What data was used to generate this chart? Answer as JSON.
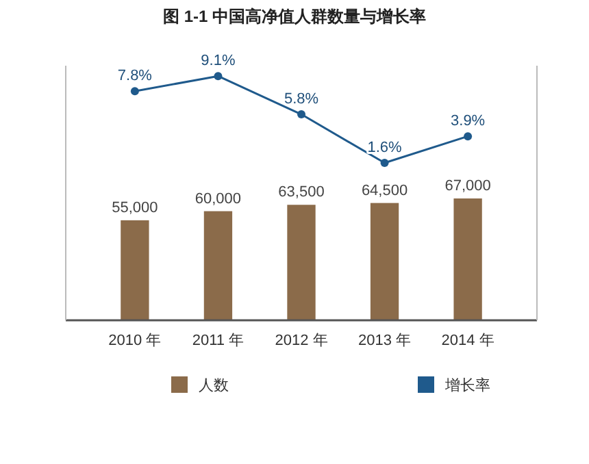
{
  "chart_data": {
    "type": "bar",
    "title": "图 1-1 中国高净值人群数量与增长率",
    "categories": [
      "2010 年",
      "2011 年",
      "2012 年",
      "2013 年",
      "2014 年"
    ],
    "series": [
      {
        "name": "人数",
        "color": "#8b6b4a",
        "values": [
          55000,
          60000,
          63500,
          64500,
          67000
        ],
        "value_labels": [
          "55,000",
          "60,000",
          "63,500",
          "64,500",
          "67,000"
        ]
      },
      {
        "name": "增长率",
        "type": "line",
        "axis": "y2",
        "color": "#1f5a8c",
        "values": [
          7.8,
          9.1,
          5.8,
          1.6,
          3.9
        ],
        "value_labels": [
          "7.8%",
          "9.1%",
          "5.8%",
          "1.6%",
          "3.9%"
        ]
      }
    ],
    "ylim": [
      0,
      140000
    ],
    "y2lim": [
      -12,
      10
    ],
    "tick_labels": "x",
    "data_labels": true,
    "legend": "bottom",
    "marker": "circle"
  }
}
